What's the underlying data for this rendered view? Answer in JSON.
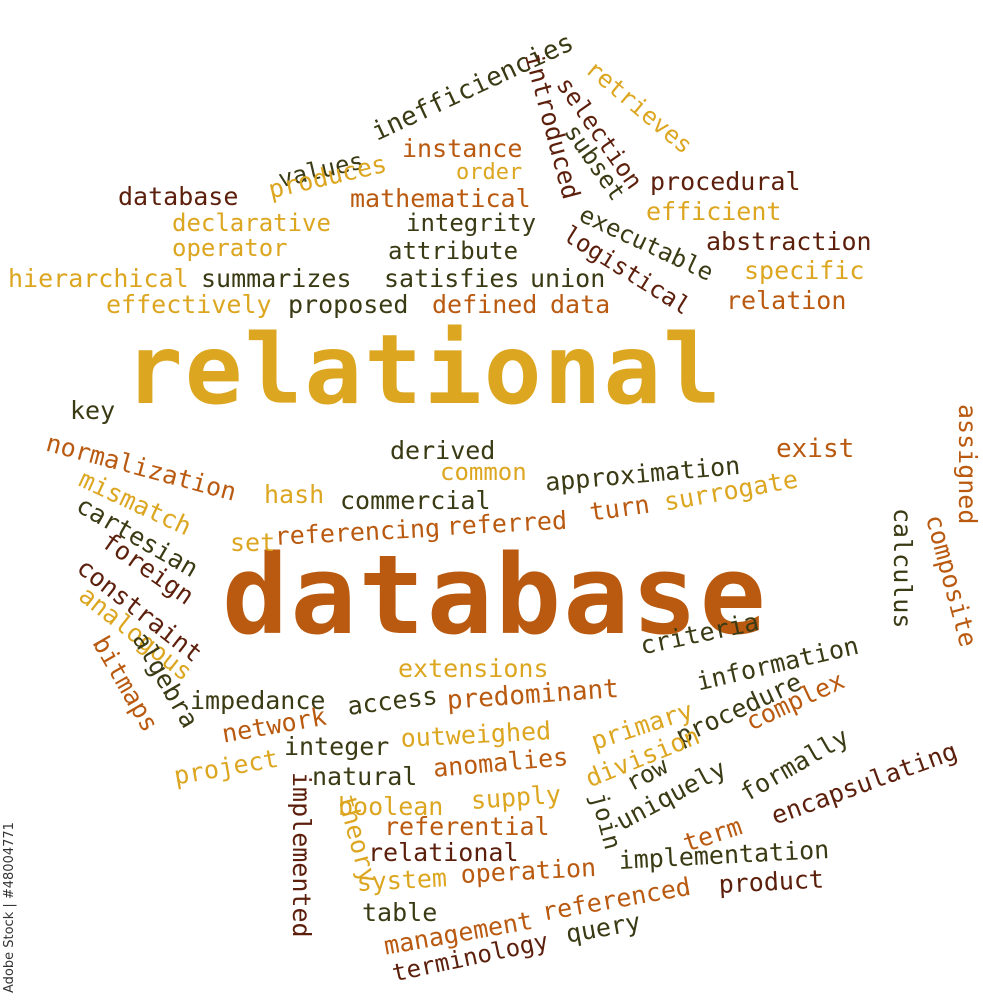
{
  "colors": {
    "brown": "#5c1f0c",
    "olive": "#3a3a14",
    "orange": "#b95a10",
    "gold": "#dca620"
  },
  "stock_id": "Adobe Stock | #48004771",
  "words": [
    "relational",
    "database",
    "values",
    "inefficiencies",
    "introduced",
    "retrieves",
    "selection",
    "subset",
    "instance",
    "produces",
    "order",
    "database",
    "mathematical",
    "procedural",
    "efficient",
    "declarative",
    "integrity",
    "executable",
    "abstraction",
    "operator",
    "attribute",
    "logistical",
    "specific",
    "hierarchical",
    "summarizes",
    "satisfies",
    "union",
    "effectively",
    "proposed",
    "defined",
    "data",
    "relation",
    "key",
    "derived",
    "exist",
    "assigned",
    "normalization",
    "common",
    "approximation",
    "hash",
    "commercial",
    "surrogate",
    "mismatch",
    "cartesian",
    "set",
    "referencing",
    "referred",
    "turn",
    "calculus",
    "foreign",
    "constraint",
    "composite",
    "analogous",
    "criteria",
    "extensions",
    "information",
    "bitmaps",
    "algebra",
    "impedance",
    "access",
    "predominant",
    "network",
    "primary",
    "procedure",
    "complex",
    "integer",
    "outweighed",
    "division",
    "row",
    "formally",
    "project",
    "natural",
    "anomalies",
    "uniquely",
    "encapsulating",
    "implemented",
    "boolean",
    "supply",
    "join",
    "term",
    "theory",
    "referential",
    "relational",
    "implementation",
    "system",
    "operation",
    "product",
    "table",
    "management",
    "referenced",
    "query",
    "terminology"
  ]
}
